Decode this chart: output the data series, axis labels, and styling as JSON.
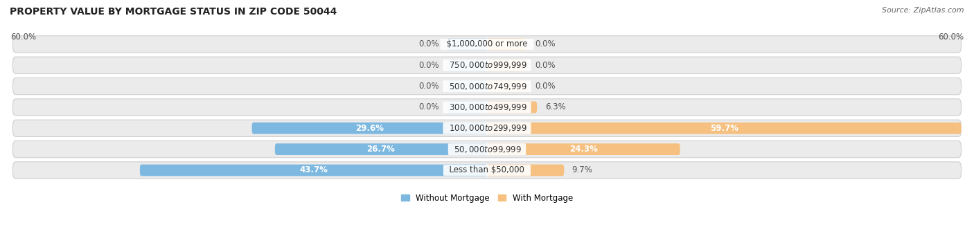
{
  "title": "PROPERTY VALUE BY MORTGAGE STATUS IN ZIP CODE 50044",
  "source": "Source: ZipAtlas.com",
  "categories": [
    "Less than $50,000",
    "$50,000 to $99,999",
    "$100,000 to $299,999",
    "$300,000 to $499,999",
    "$500,000 to $749,999",
    "$750,000 to $999,999",
    "$1,000,000 or more"
  ],
  "without_mortgage": [
    43.7,
    26.7,
    29.6,
    0.0,
    0.0,
    0.0,
    0.0
  ],
  "with_mortgage": [
    9.7,
    24.3,
    59.7,
    6.3,
    0.0,
    0.0,
    0.0
  ],
  "color_without": "#7db8e0",
  "color_with": "#f5c080",
  "color_without_dim": "#b8d8ef",
  "color_with_dim": "#fad9a8",
  "row_bg_color": "#ebebeb",
  "row_border_color": "#d0d0d0",
  "x_max": 60.0,
  "x_min": -60.0,
  "stub_size": 5.0,
  "x_axis_label_left": "60.0%",
  "x_axis_label_right": "60.0%",
  "title_fontsize": 10,
  "source_fontsize": 8,
  "label_fontsize": 8.5,
  "category_fontsize": 8.5,
  "bar_value_fontsize": 8.5,
  "bar_value_color_inside": "#ffffff",
  "bar_value_color_outside": "#555555"
}
